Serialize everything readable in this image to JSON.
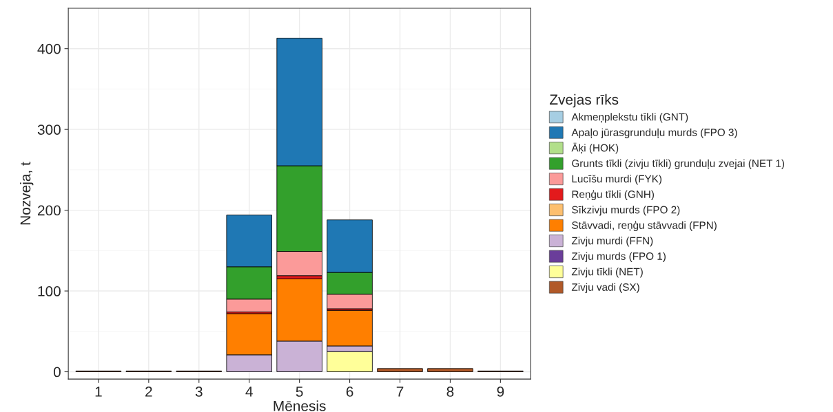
{
  "chart_data": {
    "type": "bar",
    "stacked": true,
    "xlabel": "Mēnesis",
    "ylabel": "Nozveja, t",
    "legend_title": "Zvejas rīks",
    "categories": [
      "1",
      "2",
      "3",
      "4",
      "5",
      "6",
      "7",
      "8",
      "9"
    ],
    "series": [
      {
        "name": "Zivju vadi (SX)",
        "color": "#b15928",
        "values": [
          1,
          1,
          1,
          0,
          0,
          0,
          4,
          4,
          1
        ]
      },
      {
        "name": "Zivju tīkli (NET)",
        "color": "#ffff99",
        "values": [
          0,
          0,
          0,
          0,
          0,
          25,
          0,
          0,
          0
        ]
      },
      {
        "name": "Zivju murds (FPO 1)",
        "color": "#6a3d9a",
        "values": [
          0,
          0,
          0,
          0,
          0,
          0,
          0,
          0,
          0
        ]
      },
      {
        "name": "Zivju murdi (FFN)",
        "color": "#cab2d6",
        "values": [
          0,
          0,
          0,
          21,
          38,
          7,
          0,
          0,
          0
        ]
      },
      {
        "name": "Stāvvadi, reņģu stāvvadi (FPN)",
        "color": "#ff7f00",
        "values": [
          0,
          0,
          0,
          51,
          77,
          44,
          0,
          0,
          0
        ]
      },
      {
        "name": "Sīkzivju murds (FPO 2)",
        "color": "#fdbf6f",
        "values": [
          0,
          0,
          0,
          0,
          0,
          0,
          0,
          0,
          0
        ]
      },
      {
        "name": "Reņģu tīkli (GNH)",
        "color": "#e31a1c",
        "values": [
          0,
          0,
          0,
          2,
          4,
          2,
          0,
          0,
          0
        ]
      },
      {
        "name": "Lucīšu murdi (FYK)",
        "color": "#fb9a99",
        "values": [
          0,
          0,
          0,
          16,
          30,
          18,
          0,
          0,
          0
        ]
      },
      {
        "name": "Grunts tīkli (zivju tīkli) grunduļu zvejai (NET 1)",
        "color": "#33a02c",
        "values": [
          0,
          0,
          0,
          40,
          106,
          27,
          0,
          0,
          0
        ]
      },
      {
        "name": "Āķi (HOK)",
        "color": "#b2df8a",
        "values": [
          0,
          0,
          0,
          0,
          0,
          0,
          0,
          0,
          0
        ]
      },
      {
        "name": "Apaļo jūrasgrunduļu murds (FPO 3)",
        "color": "#1f78b4",
        "values": [
          0,
          0,
          0,
          64,
          158,
          65,
          0,
          0,
          0
        ]
      },
      {
        "name": "Akmeņplekstu tīkli (GNT)",
        "color": "#a6cee3",
        "values": [
          0,
          0,
          0,
          0,
          0,
          0,
          0,
          0,
          0
        ]
      }
    ],
    "ylim": [
      -9,
      450
    ],
    "yticks": [
      0,
      100,
      200,
      300,
      400
    ],
    "grid": true,
    "legend": "right"
  }
}
